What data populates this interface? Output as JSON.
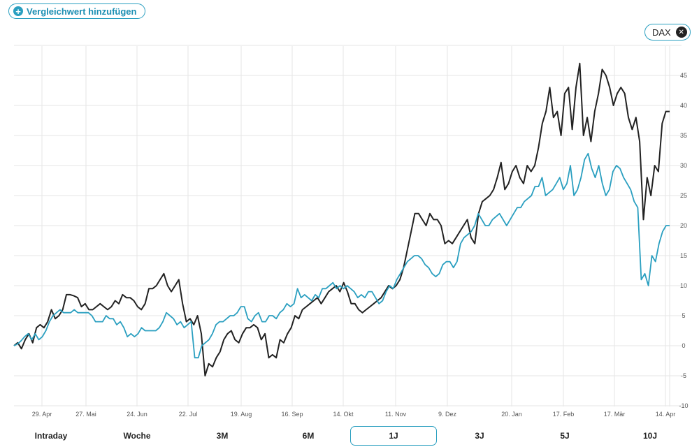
{
  "header": {
    "add_compare_label": "Vergleichwert hinzufügen",
    "add_icon": "plus-circle-icon"
  },
  "legend": {
    "chip_label": "DAX",
    "close_icon": "close-icon"
  },
  "colors": {
    "primary_series": "#222222",
    "compare_series": "#2a9fc0",
    "accent": "#2a9fc0",
    "grid": "#e6e6e6"
  },
  "ranges": [
    {
      "label": "Intraday",
      "active": false
    },
    {
      "label": "Woche",
      "active": false
    },
    {
      "label": "3M",
      "active": false
    },
    {
      "label": "6M",
      "active": false
    },
    {
      "label": "1J",
      "active": true
    },
    {
      "label": "3J",
      "active": false
    },
    {
      "label": "5J",
      "active": false
    },
    {
      "label": "10J",
      "active": false
    }
  ],
  "chart_data": {
    "type": "line",
    "x_ticks": [
      "29. Apr",
      "27. Mai",
      "24. Jun",
      "22. Jul",
      "19. Aug",
      "16. Sep",
      "14. Okt",
      "11. Nov",
      "9. Dez",
      "20. Jan",
      "17. Feb",
      "17. Mär",
      "14. Apr"
    ],
    "y_ticks": [
      45,
      40,
      35,
      30,
      25,
      20,
      15,
      10,
      5,
      0,
      -5,
      -10
    ],
    "ylim": [
      -10,
      50
    ],
    "y_axis_position": "right",
    "grid": true,
    "series": [
      {
        "color": "#222222",
        "values": [
          0,
          0.5,
          -0.5,
          1,
          2,
          0.5,
          3,
          3.5,
          3,
          4,
          6,
          4.5,
          5,
          6,
          8.5,
          8.5,
          8.3,
          8,
          6.5,
          7,
          6,
          6,
          6.5,
          7,
          6.5,
          6,
          6.5,
          7.5,
          7,
          8.5,
          8,
          8,
          7.5,
          6.5,
          6,
          7,
          9.5,
          9.5,
          10,
          11,
          12,
          10,
          9,
          10,
          11,
          7,
          4,
          4.5,
          3.5,
          5,
          2,
          -5,
          -3,
          -3.5,
          -2,
          -1,
          1,
          2,
          2.5,
          1,
          0.5,
          2,
          3,
          3,
          3.5,
          3,
          1,
          2,
          -2,
          -1.5,
          -2,
          1,
          0.5,
          2,
          3,
          5,
          4.5,
          6,
          6.5,
          7,
          7.5,
          8,
          7,
          8,
          9,
          9.5,
          10,
          9,
          10.5,
          9,
          7,
          7,
          6,
          5.5,
          6,
          6.5,
          7,
          7.5,
          8,
          9,
          10,
          9.5,
          10,
          11,
          13,
          16,
          19,
          22,
          22,
          21,
          20,
          22,
          21,
          21,
          20,
          17,
          17.5,
          17,
          18,
          19,
          20,
          21,
          18,
          17,
          22,
          24,
          24.5,
          25,
          26,
          28,
          30.5,
          26,
          27,
          29,
          30,
          28,
          27,
          30,
          29,
          30,
          33,
          37,
          39,
          43,
          38,
          39,
          35,
          42,
          43,
          36,
          43,
          47,
          35,
          38,
          34,
          39,
          42,
          46,
          45,
          43,
          40,
          42,
          43,
          42,
          38,
          36,
          38,
          34,
          21,
          28,
          25,
          30,
          29,
          37,
          39,
          39
        ]
      },
      {
        "color": "#2a9fc0",
        "values": [
          0,
          0.3,
          0.8,
          1.5,
          2,
          1,
          2,
          1,
          1.5,
          2.5,
          4,
          5,
          5.5,
          6,
          5.5,
          5.5,
          5.5,
          6,
          5.5,
          5.5,
          5.5,
          5.5,
          5,
          4,
          4,
          4,
          5,
          4.5,
          4.5,
          3.5,
          4,
          3,
          1.5,
          2,
          1.5,
          2,
          3,
          2.5,
          2.5,
          2.5,
          2.5,
          3,
          4,
          5.5,
          5,
          4.5,
          3.5,
          4,
          3,
          3.5,
          4,
          -2,
          -2,
          0,
          0.5,
          1,
          2,
          3.5,
          4,
          4,
          4.5,
          5,
          5,
          5.5,
          6.5,
          6.5,
          4.5,
          4,
          5,
          5.5,
          4,
          4,
          5,
          5,
          4.5,
          5.5,
          6,
          7,
          6.5,
          7,
          9.5,
          8,
          8.5,
          8,
          7.5,
          8.5,
          8,
          9.5,
          9.5,
          10,
          10.5,
          9.5,
          10,
          9.5,
          10,
          9.5,
          9,
          8,
          8.5,
          8,
          9,
          9,
          8,
          7,
          7.5,
          9,
          10,
          9.5,
          11,
          12,
          13,
          14,
          14.5,
          15,
          15,
          14.5,
          13.5,
          13,
          12,
          11.5,
          12,
          13.5,
          14,
          14,
          13,
          14,
          17,
          18,
          18.5,
          19,
          20,
          22,
          21,
          20,
          20,
          21,
          21.5,
          22,
          21,
          20,
          21,
          22,
          23,
          23,
          24,
          24.5,
          25,
          26.5,
          26.5,
          28,
          25,
          25.5,
          26,
          27,
          28,
          26,
          27,
          30,
          25,
          26,
          28,
          31,
          32,
          29.5,
          28,
          30,
          27,
          25,
          26,
          29,
          30,
          29.5,
          28,
          27,
          26,
          24,
          23,
          11,
          12,
          10,
          15,
          14,
          17,
          19,
          20,
          20
        ]
      }
    ]
  }
}
